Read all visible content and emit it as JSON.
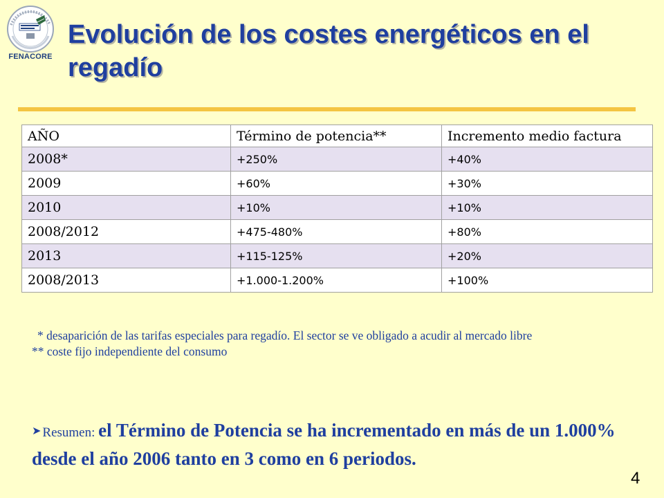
{
  "logo": {
    "arc_text": "DE COMUNIDADES DE REGANTES DE ESPAÑA",
    "name": "FENACORE"
  },
  "title": "Evolución de los costes energéticos en el regadío",
  "table": {
    "headers": [
      "AÑO",
      "Término de potencia**",
      "Incremento medio factura"
    ],
    "rows": [
      {
        "year": "2008*",
        "potencia": "+250%",
        "factura": "+40%"
      },
      {
        "year": "2009",
        "potencia": "+60%",
        "factura": "+30%"
      },
      {
        "year": "2010",
        "potencia": "+10%",
        "factura": "+10%"
      },
      {
        "year": "2008/2012",
        "potencia": "+475-480%",
        "factura": "+80%"
      },
      {
        "year": "2013",
        "potencia": "+115-125%",
        "factura": "+20%"
      },
      {
        "year": "2008/2013",
        "potencia": "+1.000-1.200%",
        "factura": "+100%"
      }
    ]
  },
  "notes": {
    "note1": "* desaparición de las tarifas especiales para regadío. El sector se ve obligado a acudir al mercado libre",
    "note2": "** coste fijo independiente del consumo"
  },
  "summary": {
    "lead": "Resumen: ",
    "text": "el Término de Potencia se ha incrementado en más de un 1.000% desde el año 2006 tanto en 3 como en 6 periodos."
  },
  "page_number": "4",
  "colors": {
    "background": "#FFFFCC",
    "title": "#1F3F9F",
    "rule": "#F4C542",
    "row_alt": "#E6E0F0"
  }
}
